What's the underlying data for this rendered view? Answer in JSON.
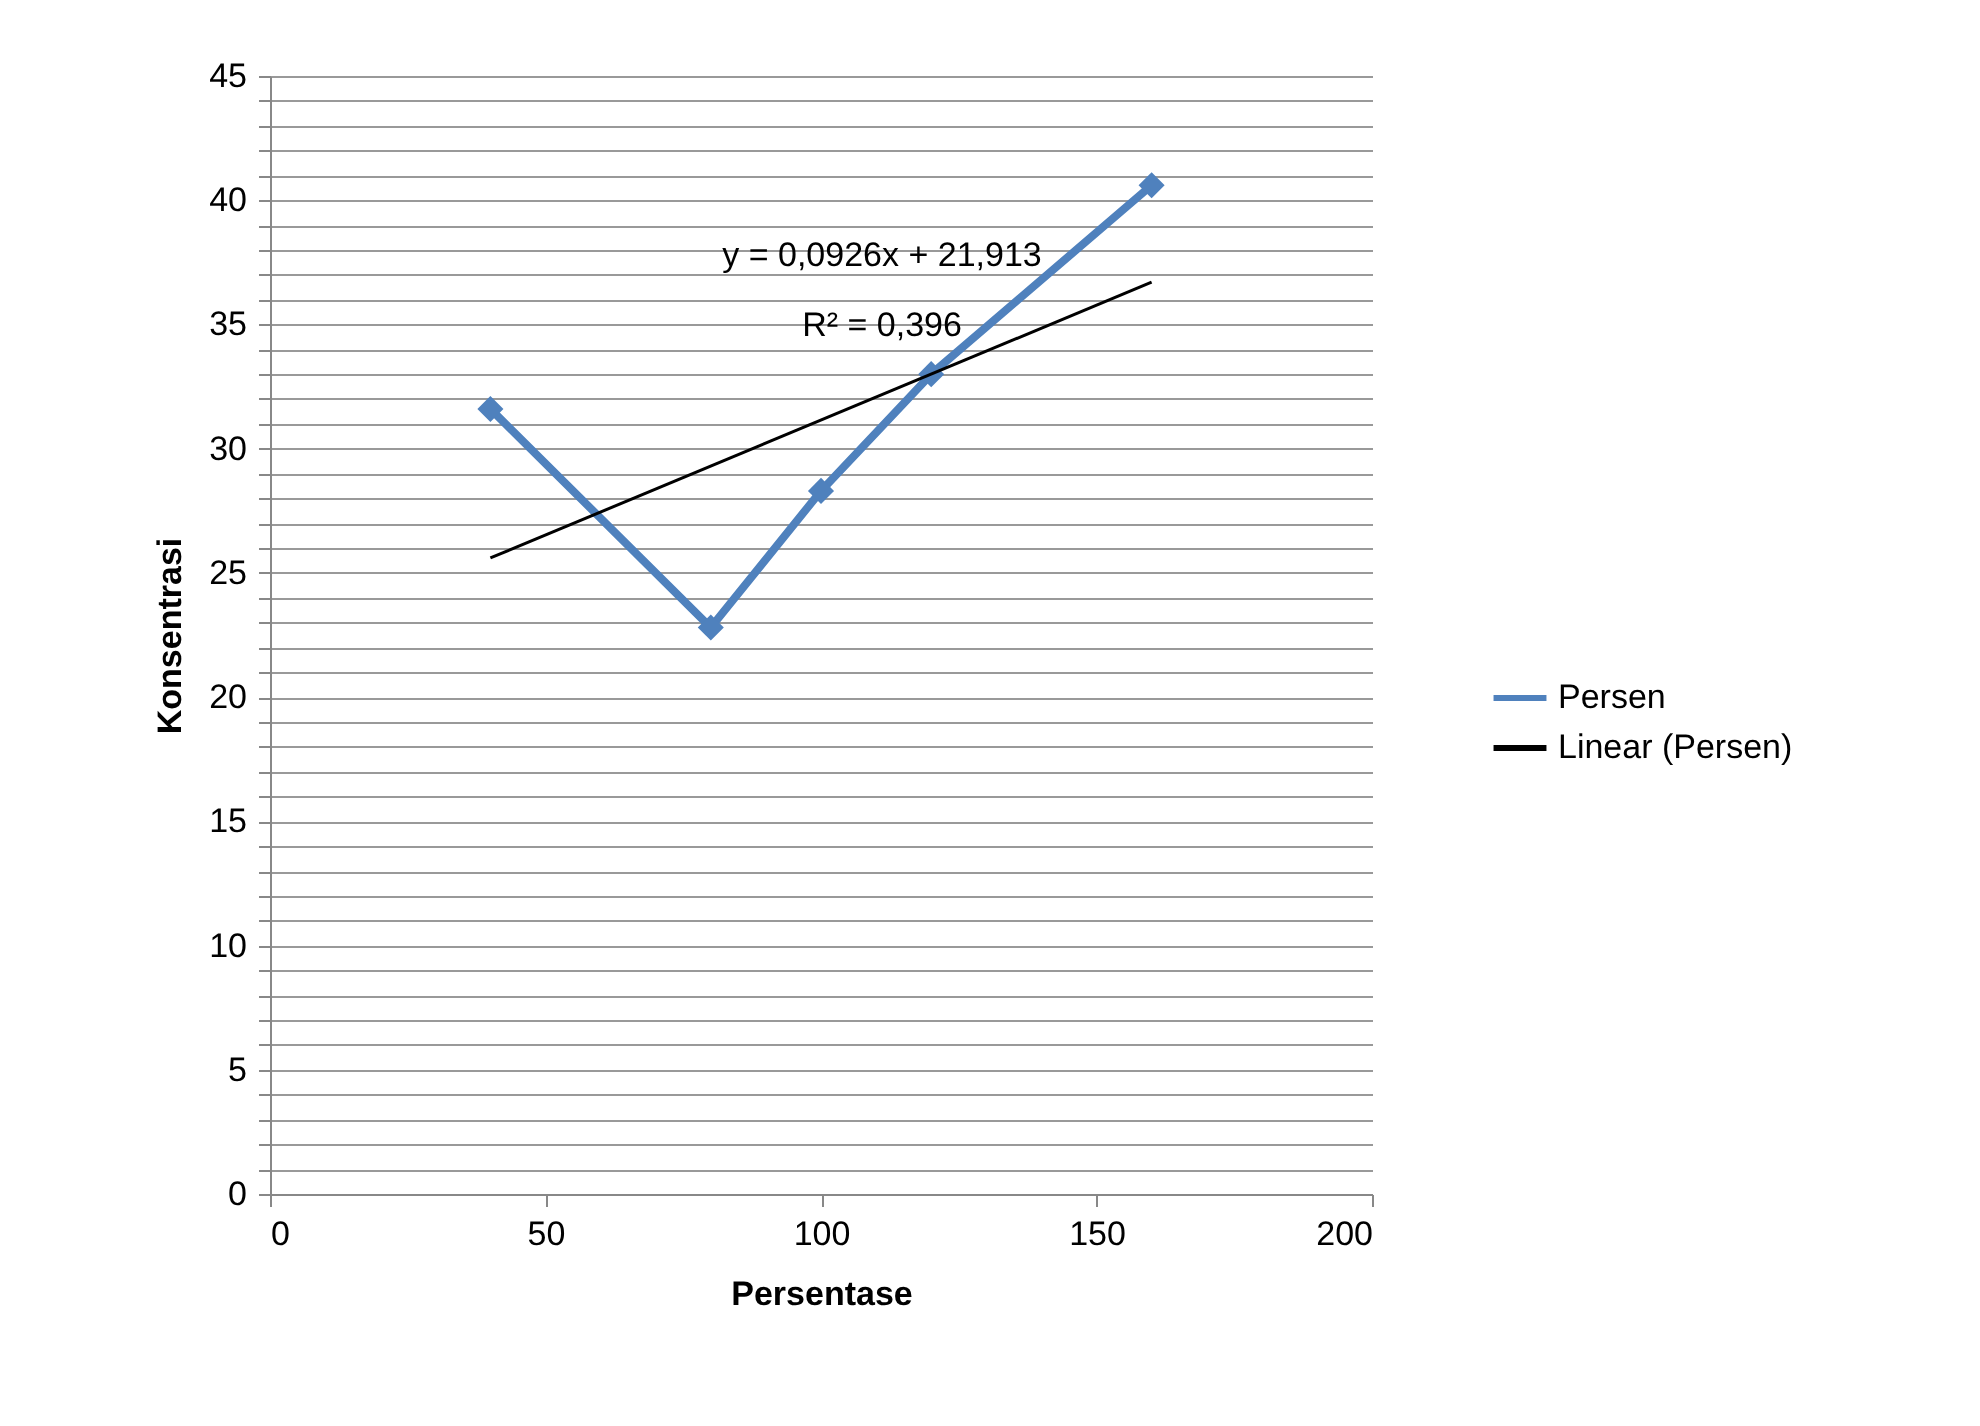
{
  "chart_data": {
    "type": "line",
    "xlabel": "Persentase",
    "ylabel": "Konsentrasi",
    "xlim": [
      0,
      200
    ],
    "xticks": [
      0,
      50,
      100,
      150,
      200
    ],
    "ylim": [
      0,
      45
    ],
    "yticks": [
      0,
      {
        "value": 1,
        "label": null
      },
      {
        "value": 2,
        "label": null
      },
      {
        "value": 3,
        "label": null
      },
      {
        "value": 4,
        "label": null
      },
      5,
      {
        "value": 6,
        "label": null
      },
      {
        "value": 7,
        "label": null
      },
      {
        "value": 8,
        "label": null
      },
      {
        "value": 9,
        "label": null
      },
      10,
      {
        "value": 11,
        "label": null
      },
      {
        "value": 12,
        "label": null
      },
      {
        "value": 13,
        "label": null
      },
      {
        "value": 14,
        "label": null
      },
      15,
      {
        "value": 16,
        "label": null
      },
      {
        "value": 17,
        "label": null
      },
      {
        "value": 18,
        "label": null
      },
      {
        "value": 19,
        "label": null
      },
      20,
      {
        "value": 21,
        "label": null
      },
      {
        "value": 22,
        "label": null
      },
      {
        "value": 23,
        "label": null
      },
      {
        "value": 24,
        "label": null
      },
      25,
      {
        "value": 26,
        "label": null
      },
      {
        "value": 27,
        "label": null
      },
      {
        "value": 28,
        "label": null
      },
      {
        "value": 29,
        "label": null
      },
      30,
      {
        "value": 31,
        "label": null
      },
      {
        "value": 32,
        "label": null
      },
      {
        "value": 33,
        "label": null
      },
      {
        "value": 34,
        "label": null
      },
      35,
      {
        "value": 36,
        "label": null
      },
      {
        "value": 37,
        "label": null
      },
      {
        "value": 38,
        "label": null
      },
      {
        "value": 39,
        "label": null
      },
      40,
      {
        "value": 41,
        "label": null
      },
      {
        "value": 42,
        "label": null
      },
      {
        "value": 43,
        "label": null
      },
      {
        "value": 44,
        "label": null
      },
      45
    ],
    "grid": "y",
    "legend": "right",
    "series": [
      {
        "name": "Persen",
        "color": "#4f81bd",
        "marker": "diamond",
        "line_style": "solid",
        "x": [
          40,
          80,
          100,
          120,
          160
        ],
        "values": [
          31.6,
          22.8,
          28.3,
          33.0,
          40.6
        ]
      },
      {
        "name": "Linear (Persen)",
        "color": "#000000",
        "marker": "none",
        "line_style": "solid",
        "x": [
          40,
          160
        ],
        "values": [
          25.6,
          36.7
        ]
      }
    ],
    "annotations": [
      "y = 0,0926x + 21,913",
      "R² = 0,396"
    ]
  }
}
